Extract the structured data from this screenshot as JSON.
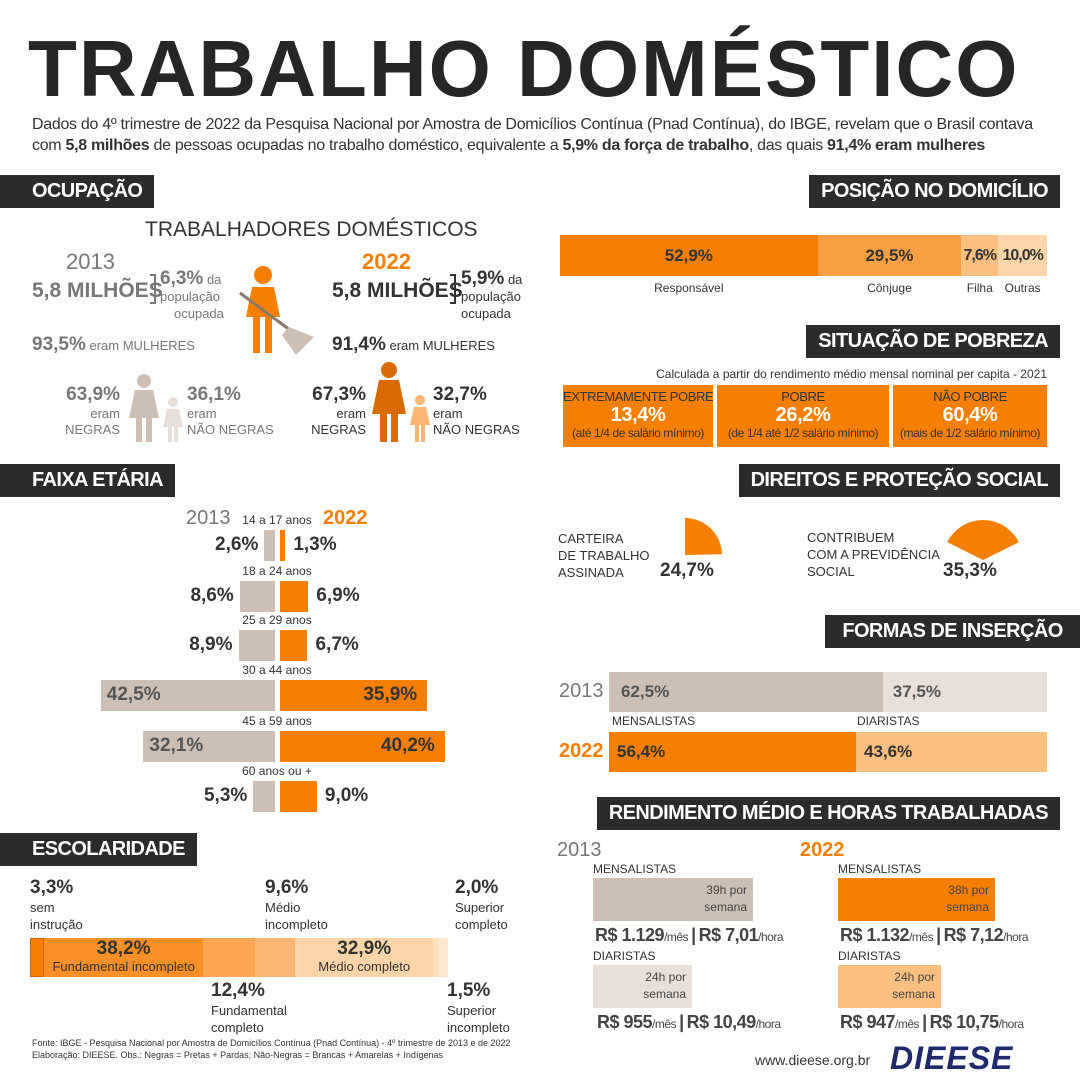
{
  "title": "TRABALHO DOMÉSTICO",
  "intro": {
    "line1": "Dados do 4º trimestre de 2022 da Pesquisa Nacional por Amostra de Domicílios Contínua (Pnad Contínua), do IBGE, revelam que o Brasil contava",
    "l2a": "com ",
    "l2b": "5,8 milhões",
    "l2c": " de pessoas ocupadas no trabalho doméstico, equivalente a ",
    "l2d": "5,9% da força de trabalho",
    "l2e": ", das quais ",
    "l2f": "91,4% eram mulheres"
  },
  "colors": {
    "orange": "#f77f00",
    "dark": "#2b2b2b",
    "beige": "#cdbfb3"
  },
  "ocupacao": {
    "header": "OCUPAÇÃO",
    "subtitle": "TRABALHADORES DOMÉSTICOS",
    "y2013": {
      "year": "2013",
      "total": "5,8 MILHÕES",
      "pct": "6,3%",
      "pct_label1": "da",
      "pct_label2": "população",
      "pct_label3": "ocupada",
      "women": "93,5%",
      "women_label": "eram MULHERES",
      "negras": "63,9%",
      "negras_l1": "eram",
      "negras_l2": "NEGRAS",
      "nao_negras": "36,1%",
      "nn_l1": "eram",
      "nn_l2": "NÃO NEGRAS"
    },
    "y2022": {
      "year": "2022",
      "total": "5,8 MILHÕES",
      "pct": "5,9%",
      "pct_label1": "da",
      "pct_label2": "população",
      "pct_label3": "ocupada",
      "women": "91,4%",
      "women_label": "eram MULHERES",
      "negras": "67,3%",
      "negras_l1": "eram",
      "negras_l2": "NEGRAS",
      "nao_negras": "32,7%",
      "nn_l1": "eram",
      "nn_l2": "NÃO NEGRAS"
    }
  },
  "posicao": {
    "header": "POSIÇÃO NO DOMICÍLIO",
    "segments": [
      {
        "label": "Responsável",
        "value": 52.9,
        "text": "52,9%",
        "color": "#f77f00"
      },
      {
        "label": "Cônjuge",
        "value": 29.5,
        "text": "29,5%",
        "color": "#f9a045"
      },
      {
        "label": "Filha",
        "value": 7.6,
        "text": "7,6%",
        "color": "#fbbf80"
      },
      {
        "label": "Outras",
        "value": 10.0,
        "text": "10,0%",
        "color": "#fcd5aa"
      }
    ]
  },
  "pobreza": {
    "header": "SITUAÇÃO DE POBREZA",
    "note": "Calculada a partir do rendimento médio mensal nominal per capita - 2021",
    "items": [
      {
        "label": "EXTREMAMENTE POBRE",
        "value": "13,4%",
        "range": "(até 1/4 de salário mínimo)"
      },
      {
        "label": "POBRE",
        "value": "26,2%",
        "range": "(de 1/4 até 1/2 salário mínimo)"
      },
      {
        "label": "NÃO POBRE",
        "value": "60,4%",
        "range": "(mais de 1/2 salário mínimo)"
      }
    ]
  },
  "faixa": {
    "header": "FAIXA ETÁRIA",
    "y1": "2013",
    "y2": "2022",
    "rows": [
      {
        "label": "14 a 17 anos",
        "v2013": 2.6,
        "t2013": "2,6%",
        "v2022": 1.3,
        "t2022": "1,3%"
      },
      {
        "label": "18 a 24 anos",
        "v2013": 8.6,
        "t2013": "8,6%",
        "v2022": 6.9,
        "t2022": "6,9%"
      },
      {
        "label": "25 a 29 anos",
        "v2013": 8.9,
        "t2013": "8,9%",
        "v2022": 6.7,
        "t2022": "6,7%"
      },
      {
        "label": "30 a 44 anos",
        "v2013": 42.5,
        "t2013": "42,5%",
        "v2022": 35.9,
        "t2022": "35,9%"
      },
      {
        "label": "45 a 59 anos",
        "v2013": 32.1,
        "t2013": "32,1%",
        "v2022": 40.2,
        "t2022": "40,2%"
      },
      {
        "label": "60 anos ou +",
        "v2013": 5.3,
        "t2013": "5,3%",
        "v2022": 9.0,
        "t2022": "9,0%"
      }
    ]
  },
  "direitos": {
    "header": "DIREITOS E PROTEÇÃO SOCIAL",
    "carteira": {
      "l1": "CARTEIRA",
      "l2": "DE TRABALHO",
      "l3": "ASSINADA",
      "value": 24.7,
      "text": "24,7%"
    },
    "previdencia": {
      "l1": "CONTRIBUEM",
      "l2": "COM A PREVIDÊNCIA",
      "l3": "SOCIAL",
      "value": 35.3,
      "text": "35,3%"
    }
  },
  "formas": {
    "header": "FORMAS DE INSERÇÃO",
    "y1": "2013",
    "y2": "2022",
    "mensalistas": "MENSALISTAS",
    "diaristas": "DIARISTAS",
    "v2013": [
      62.5,
      37.5
    ],
    "t2013": [
      "62,5%",
      "37,5%"
    ],
    "v2022": [
      56.4,
      43.6
    ],
    "t2022": [
      "56,4%",
      "43,6%"
    ]
  },
  "rendimento": {
    "header": "RENDIMENTO MÉDIO E HORAS TRABALHADAS",
    "y1": "2013",
    "y2": "2022",
    "m2013": {
      "label": "MENSALISTAS",
      "h1": "39h por",
      "h2": "semana",
      "mes": "R$ 1.129",
      "hora": "R$ 7,01"
    },
    "d2013": {
      "label": "DIARISTAS",
      "h1": "24h por",
      "h2": "semana",
      "mes": "R$ 955",
      "hora": "R$ 10,49"
    },
    "m2022": {
      "label": "MENSALISTAS",
      "h1": "38h por",
      "h2": "semana",
      "mes": "R$ 1.132",
      "hora": "R$ 7,12"
    },
    "d2022": {
      "label": "DIARISTAS",
      "h1": "24h por",
      "h2": "semana",
      "mes": "R$ 947",
      "hora": "R$ 10,75"
    },
    "per_mes": "/mês",
    "per_hora": "/hora",
    "sep": "|"
  },
  "escolaridade": {
    "header": "ESCOLARIDADE",
    "segments": [
      {
        "value": 3.3,
        "text": "3,3%",
        "label": "sem instrução",
        "color": "#f77f00"
      },
      {
        "value": 38.2,
        "text": "38,2%",
        "label": "Fundamental incompleto",
        "color": "#f98f27"
      },
      {
        "value": 12.4,
        "text": "12,4%",
        "label": "Fundamental completo",
        "color": "#fba552"
      },
      {
        "value": 9.6,
        "text": "9,6%",
        "label": "Médio incompleto",
        "color": "#fbb673"
      },
      {
        "value": 32.9,
        "text": "32,9%",
        "label": "Médio completo",
        "color": "#fdd3a8"
      },
      {
        "value": 1.5,
        "text": "1,5%",
        "label": "Superior incompleto",
        "color": "#fde0c0"
      },
      {
        "value": 2.0,
        "text": "2,0%",
        "label": "Superior completo",
        "color": "#fee8d2"
      }
    ],
    "l_sem1": "sem",
    "l_sem2": "instrução",
    "l_mi1": "Médio",
    "l_mi2": "incompleto",
    "l_sc1": "Superior",
    "l_sc2": "completo",
    "l_fc1": "Fundamental",
    "l_fc2": "completo",
    "l_si1": "Superior",
    "l_si2": "incompleto"
  },
  "footer": {
    "source": "Fonte: IBGE - Pesquisa Nacional por Amostra de Domicílios Contínua (Pnad Contínua) - 4º trimestre de 2013 e de 2022",
    "note": "Elaboração: DIEESE. Obs.: Negras = Pretas + Pardas; Não-Negras = Brancas + Amarelas + Indígenas",
    "site": "www.dieese.org.br",
    "logo": "DIEESE"
  }
}
